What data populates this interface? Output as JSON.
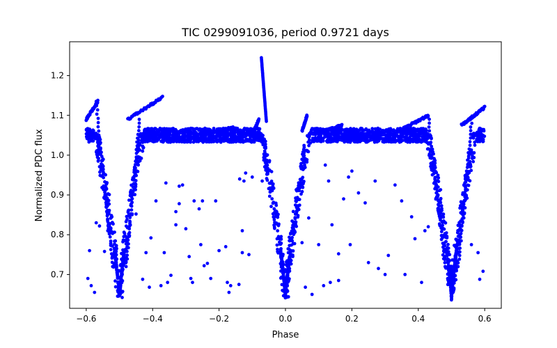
{
  "chart_data": {
    "type": "scatter",
    "title": "TIC 0299091036, period 0.9721 days",
    "xlabel": "Phase",
    "ylabel": "Normalized PDC flux",
    "xlim": [
      -0.65,
      0.65
    ],
    "ylim": [
      0.615,
      1.285
    ],
    "xticks": [
      -0.6,
      -0.4,
      -0.2,
      0.0,
      0.2,
      0.4,
      0.6
    ],
    "xtick_labels": [
      "−0.6",
      "−0.4",
      "−0.2",
      "0.0",
      "0.2",
      "0.4",
      "0.6"
    ],
    "yticks": [
      0.7,
      0.8,
      0.9,
      1.0,
      1.1,
      1.2
    ],
    "ytick_labels": [
      "0.7",
      "0.8",
      "0.9",
      "1.0",
      "1.1",
      "1.2"
    ],
    "grid": false,
    "marker_color": "#0000ff",
    "phase_range": [
      -0.6,
      0.6
    ],
    "baseline_flux": 1.05,
    "eclipse_centers": [
      -0.5,
      0.0,
      0.5
    ],
    "eclipse_min_flux": 0.64,
    "flare_peak": {
      "x": -0.0725,
      "y": 1.245
    },
    "outliers": [
      [
        -0.595,
        0.69
      ],
      [
        -0.59,
        0.76
      ],
      [
        -0.585,
        0.672
      ],
      [
        -0.575,
        0.655
      ],
      [
        -0.57,
        0.83
      ],
      [
        -0.56,
        0.822
      ],
      [
        -0.545,
        0.758
      ],
      [
        -0.535,
        0.81
      ],
      [
        -0.45,
        0.852
      ],
      [
        -0.43,
        0.688
      ],
      [
        -0.42,
        0.755
      ],
      [
        -0.41,
        0.668
      ],
      [
        -0.405,
        0.792
      ],
      [
        -0.39,
        0.885
      ],
      [
        -0.375,
        0.672
      ],
      [
        -0.365,
        0.755
      ],
      [
        -0.36,
        0.93
      ],
      [
        -0.355,
        0.68
      ],
      [
        -0.345,
        0.698
      ],
      [
        -0.33,
        0.858
      ],
      [
        -0.33,
        0.825
      ],
      [
        -0.32,
        0.922
      ],
      [
        -0.32,
        0.878
      ],
      [
        -0.31,
        0.925
      ],
      [
        -0.3,
        0.815
      ],
      [
        -0.29,
        0.745
      ],
      [
        -0.285,
        0.69
      ],
      [
        -0.28,
        0.68
      ],
      [
        -0.275,
        0.885
      ],
      [
        -0.26,
        0.865
      ],
      [
        -0.255,
        0.775
      ],
      [
        -0.25,
        0.885
      ],
      [
        -0.245,
        0.722
      ],
      [
        -0.235,
        0.728
      ],
      [
        -0.225,
        0.69
      ],
      [
        -0.21,
        0.885
      ],
      [
        -0.2,
        0.76
      ],
      [
        -0.18,
        0.77
      ],
      [
        -0.175,
        0.68
      ],
      [
        -0.17,
        0.655
      ],
      [
        -0.165,
        0.672
      ],
      [
        -0.14,
        0.675
      ],
      [
        -0.138,
        0.94
      ],
      [
        -0.13,
        0.755
      ],
      [
        -0.125,
        0.935
      ],
      [
        -0.12,
        0.955
      ],
      [
        -0.11,
        0.75
      ],
      [
        -0.1,
        0.945
      ],
      [
        -0.13,
        0.81
      ],
      [
        0.06,
        0.668
      ],
      [
        0.07,
        0.842
      ],
      [
        0.08,
        0.65
      ],
      [
        0.1,
        0.775
      ],
      [
        0.115,
        0.672
      ],
      [
        0.12,
        0.975
      ],
      [
        0.13,
        0.935
      ],
      [
        0.135,
        0.68
      ],
      [
        0.14,
        0.825
      ],
      [
        0.16,
        0.685
      ],
      [
        0.16,
        0.752
      ],
      [
        0.175,
        0.89
      ],
      [
        0.19,
        0.945
      ],
      [
        0.195,
        0.775
      ],
      [
        0.2,
        0.96
      ],
      [
        0.22,
        0.905
      ],
      [
        0.24,
        0.88
      ],
      [
        0.25,
        0.73
      ],
      [
        0.27,
        0.935
      ],
      [
        0.28,
        0.715
      ],
      [
        0.3,
        0.7
      ],
      [
        0.31,
        0.748
      ],
      [
        0.33,
        0.925
      ],
      [
        0.35,
        0.885
      ],
      [
        0.36,
        0.7
      ],
      [
        0.38,
        0.845
      ],
      [
        0.39,
        0.79
      ],
      [
        0.41,
        0.68
      ],
      [
        0.42,
        0.81
      ],
      [
        0.43,
        0.82
      ],
      [
        0.56,
        0.775
      ],
      [
        0.58,
        0.755
      ],
      [
        0.585,
        0.688
      ],
      [
        0.595,
        0.708
      ],
      [
        -0.07,
        0.935
      ],
      [
        0.05,
        0.78
      ]
    ]
  }
}
